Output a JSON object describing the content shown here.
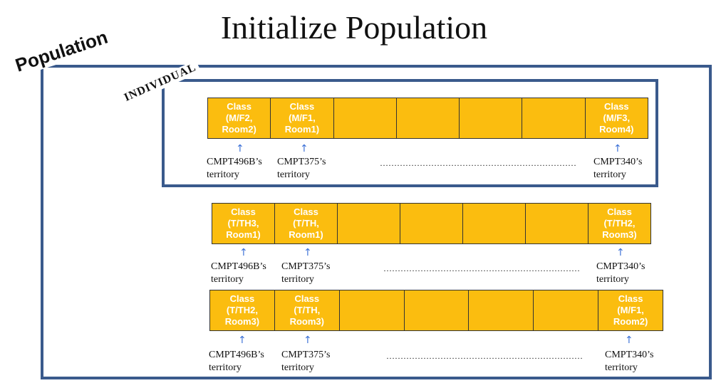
{
  "title": "Initialize Population",
  "population_label": "Population",
  "individual_label": "INDIVIDUAL",
  "ellipsis": "……………………………………………………………",
  "individuals": [
    {
      "first": "Class\n(M/F2,\nRoom2)",
      "second": "Class\n(M/F1,\nRoom1)",
      "last": "Class\n(M/F3,\nRoom4)",
      "label_first": "CMPT496B’s\nterritory",
      "label_second": "CMPT375’s\nterritory",
      "label_last": "CMPT340’s\nterritory"
    },
    {
      "first": "Class\n(T/TH3,\nRoom1)",
      "second": "Class\n(T/TH,\nRoom1)",
      "last": "Class\n(T/TH2,\nRoom3)",
      "label_first": "CMPT496B’s\nterritory",
      "label_second": "CMPT375’s\nterritory",
      "label_last": "CMPT340’s\nterritory"
    },
    {
      "first": "Class\n(T/TH2,\nRoom3)",
      "second": "Class\n(T/TH,\nRoom3)",
      "last": "Class\n(M/F1,\nRoom2)",
      "label_first": "CMPT496B’s\nterritory",
      "label_second": "CMPT375’s\nterritory",
      "label_last": "CMPT340’s\nterritory"
    }
  ]
}
